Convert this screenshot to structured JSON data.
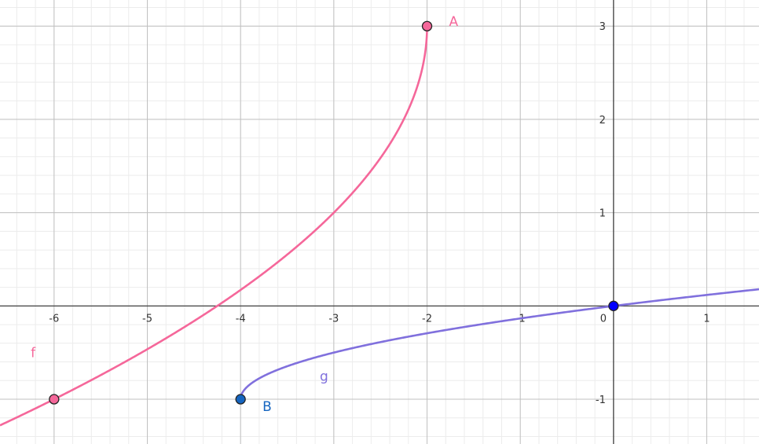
{
  "chart_data": {
    "type": "line",
    "xlim": [
      -6.58,
      1.56
    ],
    "ylim": [
      -1.48,
      3.28
    ],
    "grid": true,
    "minor_grid_step": 0.2,
    "major_grid_step": 1,
    "x_ticks": [
      "-6",
      "-5",
      "-4",
      "-3",
      "-2",
      "-1",
      "0",
      "1"
    ],
    "x_tick_values": [
      -6,
      -5,
      -4,
      -3,
      -2,
      -1,
      0,
      1
    ],
    "y_ticks": [
      "-1",
      "1",
      "2",
      "3"
    ],
    "y_tick_values": [
      -1,
      1,
      2,
      3
    ],
    "series": [
      {
        "name": "f",
        "expression": "3 - 2*sqrt(-2 - x)",
        "domain": [
          -6.58,
          -2
        ],
        "color": "#f5679a"
      },
      {
        "name": "g",
        "expression": "0.5*sqrt(x + 4) - 1",
        "domain": [
          -4,
          1.56
        ],
        "color": "#8070dd"
      }
    ],
    "points": [
      {
        "name": "A",
        "x": -2,
        "y": 3,
        "color": "#f5679a",
        "label_color": "#f5679a"
      },
      {
        "name": "B",
        "x": -4,
        "y": -1,
        "color": "#1565c0",
        "label_color": "#1565c0"
      },
      {
        "name": "",
        "x": -6,
        "y": -1,
        "color": "#f5679a"
      },
      {
        "name": "",
        "x": 0,
        "y": 0,
        "color": "#0000ff"
      }
    ],
    "curve_labels": [
      {
        "text": "f",
        "x": -6.25,
        "y": -0.55,
        "color": "#f5679a"
      },
      {
        "text": "g",
        "x": -3.15,
        "y": -0.8,
        "color": "#8070dd"
      }
    ]
  }
}
